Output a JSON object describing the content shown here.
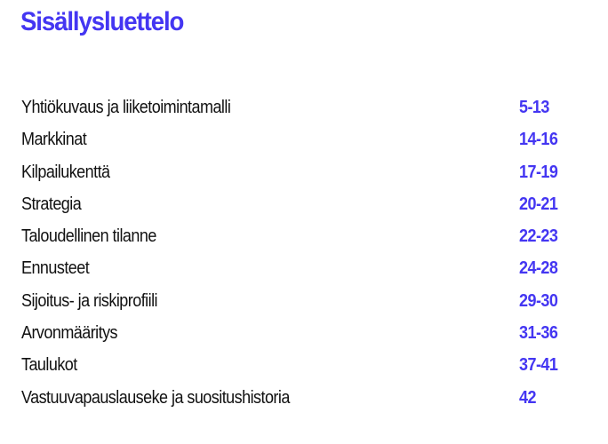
{
  "title": "Sisällysluettelo",
  "accent_color": "#4436f2",
  "entries": [
    {
      "label": "Yhtiökuvaus ja liiketoimintamalli",
      "pages": "5-13"
    },
    {
      "label": "Markkinat",
      "pages": "14-16"
    },
    {
      "label": "Kilpailukenttä",
      "pages": "17-19"
    },
    {
      "label": "Strategia",
      "pages": "20-21"
    },
    {
      "label": "Taloudellinen tilanne",
      "pages": "22-23"
    },
    {
      "label": "Ennusteet",
      "pages": "24-28"
    },
    {
      "label": "Sijoitus- ja riskiprofiili",
      "pages": "29-30"
    },
    {
      "label": "Arvonmääritys",
      "pages": "31-36"
    },
    {
      "label": "Taulukot",
      "pages": "37-41"
    },
    {
      "label": "Vastuuvapauslauseke ja suositushistoria",
      "pages": "42"
    }
  ]
}
